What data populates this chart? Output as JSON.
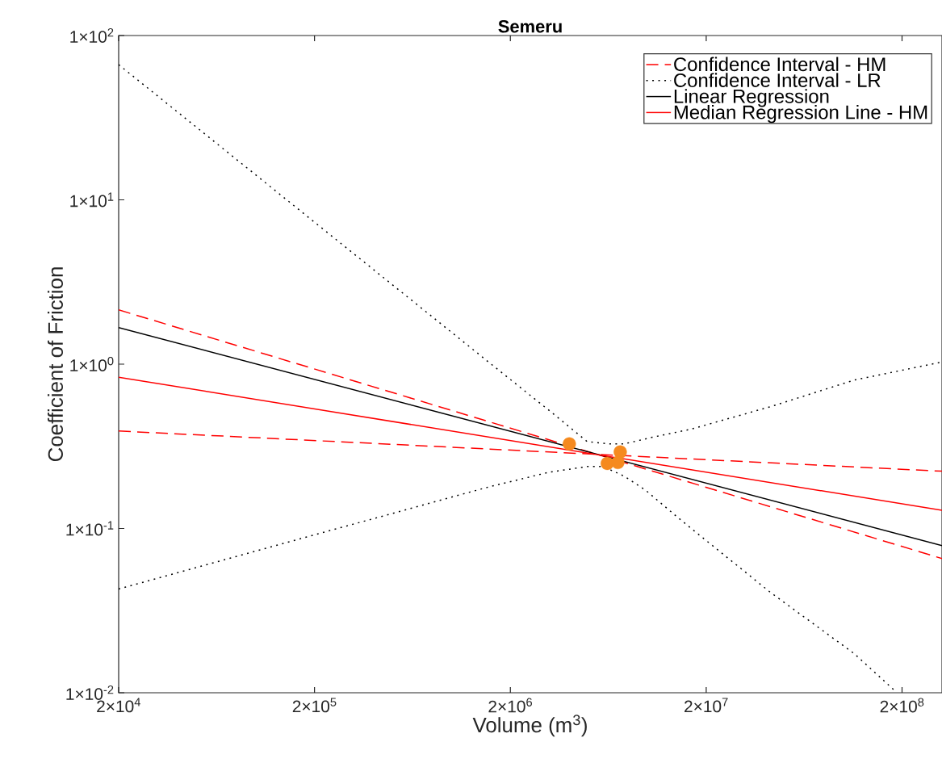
{
  "chart_data": {
    "type": "line",
    "title": "Semeru",
    "xlabel": "Volume (m$^{3}$)",
    "ylabel": "Coefficient of Friction",
    "log": "xy",
    "grid": false,
    "legend": "top right",
    "marker": "none",
    "xlim": [
      20000,
      320000000
    ],
    "ylim": [
      0.01,
      100
    ],
    "xticks": [
      {
        "value": 20000,
        "label": "2×10$^{4}$"
      },
      {
        "value": 200000,
        "label": "2×10$^{5}$"
      },
      {
        "value": 2000000,
        "label": "2×10$^{6}$"
      },
      {
        "value": 20000000,
        "label": "2×10$^{7}$"
      },
      {
        "value": 200000000,
        "label": "2×10$^{8}$"
      }
    ],
    "yticks": [
      {
        "value": 0.01,
        "label": "1×10$^{-2}$"
      },
      {
        "value": 0.1,
        "label": "1×10$^{-1}$"
      },
      {
        "value": 1,
        "label": "1×10$^{0}$"
      },
      {
        "value": 10,
        "label": "1×10$^{1}$"
      },
      {
        "value": 100,
        "label": "1×10$^{2}$"
      }
    ],
    "series": [
      {
        "name": "Confidence Interval - HM",
        "color": "#ff0000",
        "line_style": "dashed",
        "x": [
          20000,
          320000000
        ],
        "values": [
          2.14,
          0.0656
        ]
      },
      {
        "color": "#ff0000",
        "line_style": "dashed",
        "x": [
          20000,
          320000000
        ],
        "values": [
          0.392,
          0.223
        ]
      },
      {
        "name": "Confidence Interval - LR",
        "color": "#000000",
        "line_style": "dotted",
        "x": [
          20000,
          219000,
          1580000,
          3210000,
          4930000,
          6430000,
          7630000,
          10500000,
          16600000,
          42600000,
          114000000,
          320000000
        ],
        "values": [
          66.5,
          6.7,
          1.01,
          0.514,
          0.338,
          0.327,
          0.327,
          0.358,
          0.401,
          0.551,
          0.8,
          1.03
        ]
      },
      {
        "color": "#000000",
        "line_style": "dotted",
        "x": [
          20000,
          219000,
          1580000,
          3160000,
          4930000,
          5960000,
          7630000,
          9860000,
          14400000,
          16600000,
          42600000,
          114000000,
          182000000
        ],
        "values": [
          0.0428,
          0.0942,
          0.18,
          0.22,
          0.238,
          0.238,
          0.208,
          0.17,
          0.116,
          0.101,
          0.0408,
          0.0173,
          0.0104
        ]
      },
      {
        "name": "Linear Regression",
        "color": "#000000",
        "line_style": "solid",
        "x": [
          20000,
          320000000
        ],
        "values": [
          1.67,
          0.0787
        ]
      },
      {
        "name": "Median Regression Line - HM",
        "color": "#ff0000",
        "line_style": "solid",
        "x": [
          20000,
          320000000
        ],
        "values": [
          0.832,
          0.129
        ]
      },
      {
        "type": "scatter",
        "color": "#f58a1f",
        "marker": "circle",
        "x": [
          4000000,
          7280000,
          6250000,
          7080000
        ],
        "values": [
          0.327,
          0.292,
          0.249,
          0.252
        ]
      }
    ]
  }
}
